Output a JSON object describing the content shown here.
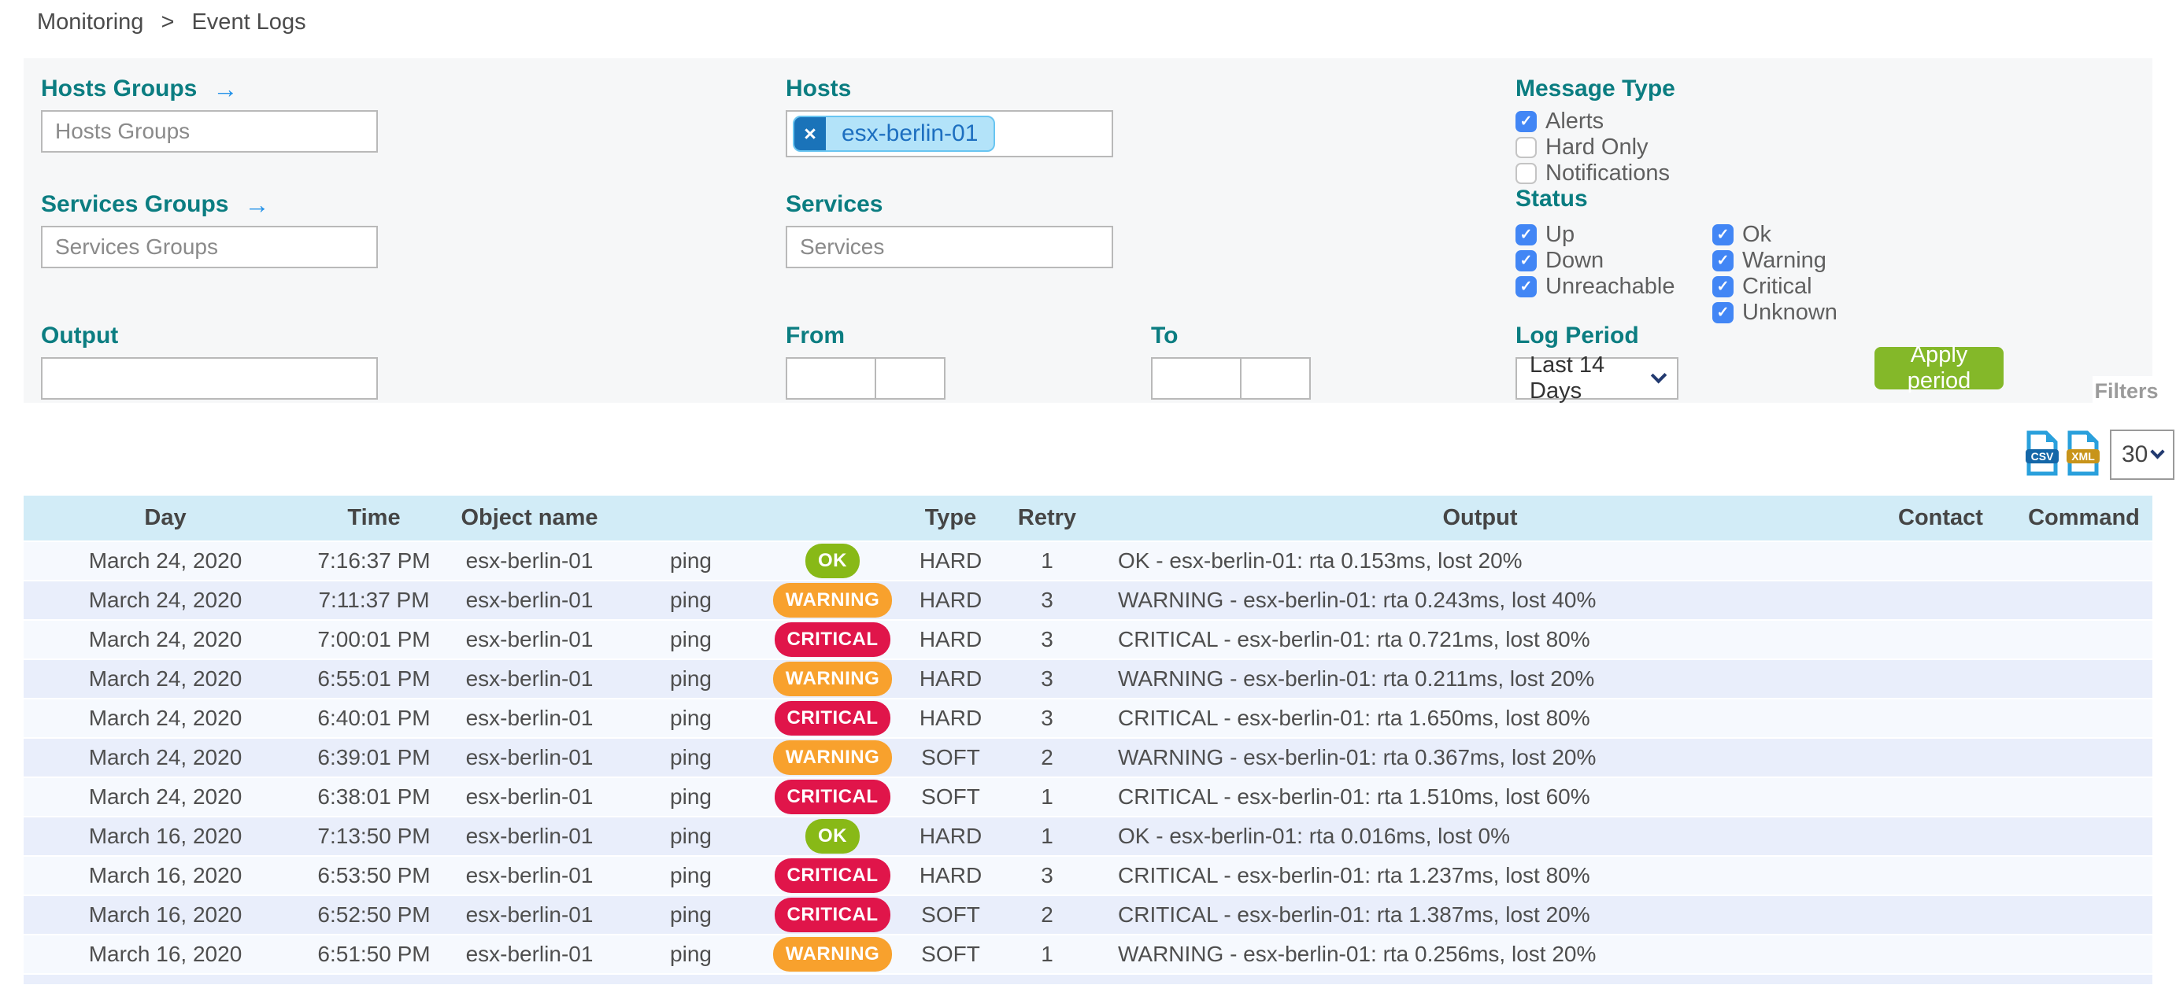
{
  "breadcrumb": {
    "section": "Monitoring",
    "separator": ">",
    "page": "Event Logs"
  },
  "icons": {
    "arrow_right": "→",
    "close": "×",
    "check": "✓",
    "chevron_down": "chevron-down"
  },
  "colors": {
    "label_teal": "#0b7d81",
    "arrow_blue": "#2492e8",
    "checkbox_blue": "#4286f5",
    "apply_green": "#84b829",
    "badge_ok": "#88b917",
    "badge_warning": "#f8a12d",
    "badge_critical": "#e0154a",
    "table_header_bg": "#d2ecf7",
    "chip_bg": "#b3e3f9",
    "chip_button_bg": "#1a73b9"
  },
  "filters": {
    "hosts_groups": {
      "label": "Hosts Groups",
      "placeholder": "Hosts Groups",
      "value": ""
    },
    "services_groups": {
      "label": "Services Groups",
      "placeholder": "Services Groups",
      "value": ""
    },
    "hosts": {
      "label": "Hosts",
      "chips": [
        {
          "text": "esx-berlin-01"
        }
      ]
    },
    "services": {
      "label": "Services",
      "placeholder": "Services",
      "value": ""
    },
    "output": {
      "label": "Output",
      "value": ""
    },
    "from": {
      "label": "From",
      "date": "",
      "time": ""
    },
    "to": {
      "label": "To",
      "date": "",
      "time": ""
    },
    "message_type": {
      "label": "Message Type",
      "options": [
        {
          "label": "Alerts",
          "checked": true
        },
        {
          "label": "Hard Only",
          "checked": false
        },
        {
          "label": "Notifications",
          "checked": false
        }
      ]
    },
    "status": {
      "label": "Status",
      "host_options": [
        {
          "label": "Up",
          "checked": true
        },
        {
          "label": "Down",
          "checked": true
        },
        {
          "label": "Unreachable",
          "checked": true
        }
      ],
      "service_options": [
        {
          "label": "Ok",
          "checked": true
        },
        {
          "label": "Warning",
          "checked": true
        },
        {
          "label": "Critical",
          "checked": true
        },
        {
          "label": "Unknown",
          "checked": true
        }
      ]
    },
    "log_period": {
      "label": "Log Period",
      "value": "Last 14 Days"
    },
    "apply_button": "Apply period",
    "filters_tab": "Filters"
  },
  "toolbar": {
    "csv_label": "CSV",
    "xml_label": "XML",
    "page_size": "30"
  },
  "table": {
    "headers": [
      "Day",
      "Time",
      "Object name",
      "",
      "",
      "Type",
      "Retry",
      "Output",
      "Contact",
      "Command"
    ],
    "row_keys": [
      "day",
      "time",
      "object",
      "service",
      "status",
      "type",
      "retry",
      "output",
      "contact",
      "command"
    ],
    "rows": [
      {
        "day": "March 24, 2020",
        "time": "7:16:37 PM",
        "object": "esx-berlin-01",
        "service": "ping",
        "status": "OK",
        "type": "HARD",
        "retry": "1",
        "output": "OK - esx-berlin-01: rta 0.153ms, lost 20%",
        "contact": "",
        "command": ""
      },
      {
        "day": "March 24, 2020",
        "time": "7:11:37 PM",
        "object": "esx-berlin-01",
        "service": "ping",
        "status": "WARNING",
        "type": "HARD",
        "retry": "3",
        "output": "WARNING - esx-berlin-01: rta 0.243ms, lost 40%",
        "contact": "",
        "command": ""
      },
      {
        "day": "March 24, 2020",
        "time": "7:00:01 PM",
        "object": "esx-berlin-01",
        "service": "ping",
        "status": "CRITICAL",
        "type": "HARD",
        "retry": "3",
        "output": "CRITICAL - esx-berlin-01: rta 0.721ms, lost 80%",
        "contact": "",
        "command": ""
      },
      {
        "day": "March 24, 2020",
        "time": "6:55:01 PM",
        "object": "esx-berlin-01",
        "service": "ping",
        "status": "WARNING",
        "type": "HARD",
        "retry": "3",
        "output": "WARNING - esx-berlin-01: rta 0.211ms, lost 20%",
        "contact": "",
        "command": ""
      },
      {
        "day": "March 24, 2020",
        "time": "6:40:01 PM",
        "object": "esx-berlin-01",
        "service": "ping",
        "status": "CRITICAL",
        "type": "HARD",
        "retry": "3",
        "output": "CRITICAL - esx-berlin-01: rta 1.650ms, lost 80%",
        "contact": "",
        "command": ""
      },
      {
        "day": "March 24, 2020",
        "time": "6:39:01 PM",
        "object": "esx-berlin-01",
        "service": "ping",
        "status": "WARNING",
        "type": "SOFT",
        "retry": "2",
        "output": "WARNING - esx-berlin-01: rta 0.367ms, lost 20%",
        "contact": "",
        "command": ""
      },
      {
        "day": "March 24, 2020",
        "time": "6:38:01 PM",
        "object": "esx-berlin-01",
        "service": "ping",
        "status": "CRITICAL",
        "type": "SOFT",
        "retry": "1",
        "output": "CRITICAL - esx-berlin-01: rta 1.510ms, lost 60%",
        "contact": "",
        "command": ""
      },
      {
        "day": "March 16, 2020",
        "time": "7:13:50 PM",
        "object": "esx-berlin-01",
        "service": "ping",
        "status": "OK",
        "type": "HARD",
        "retry": "1",
        "output": "OK - esx-berlin-01: rta 0.016ms, lost 0%",
        "contact": "",
        "command": ""
      },
      {
        "day": "March 16, 2020",
        "time": "6:53:50 PM",
        "object": "esx-berlin-01",
        "service": "ping",
        "status": "CRITICAL",
        "type": "HARD",
        "retry": "3",
        "output": "CRITICAL - esx-berlin-01: rta 1.237ms, lost 80%",
        "contact": "",
        "command": ""
      },
      {
        "day": "March 16, 2020",
        "time": "6:52:50 PM",
        "object": "esx-berlin-01",
        "service": "ping",
        "status": "CRITICAL",
        "type": "SOFT",
        "retry": "2",
        "output": "CRITICAL - esx-berlin-01: rta 1.387ms, lost 20%",
        "contact": "",
        "command": ""
      },
      {
        "day": "March 16, 2020",
        "time": "6:51:50 PM",
        "object": "esx-berlin-01",
        "service": "ping",
        "status": "WARNING",
        "type": "SOFT",
        "retry": "1",
        "output": "WARNING - esx-berlin-01: rta 0.256ms, lost 20%",
        "contact": "",
        "command": ""
      }
    ]
  }
}
